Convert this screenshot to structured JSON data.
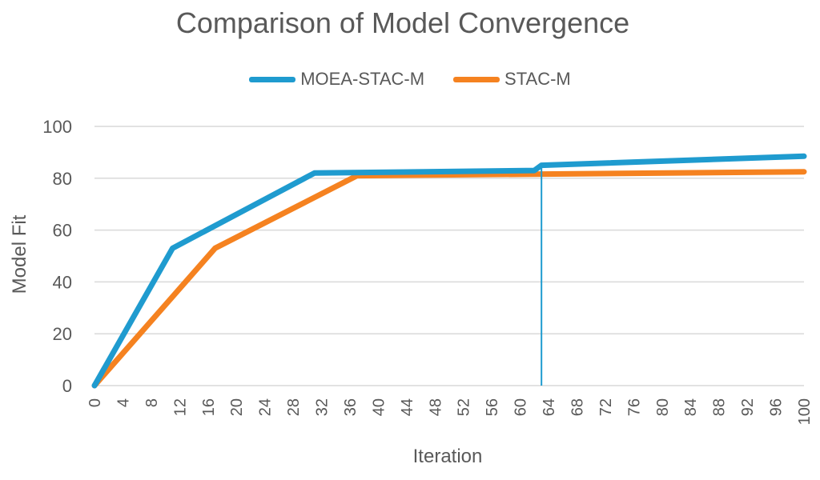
{
  "chart_data": {
    "type": "line",
    "title": "Comparison of Model Convergence",
    "xlabel": "Iteration",
    "ylabel": "Model Fit",
    "xlim": [
      0,
      100
    ],
    "ylim": [
      0,
      100
    ],
    "x_ticks": [
      0,
      4,
      8,
      12,
      16,
      20,
      24,
      28,
      32,
      36,
      40,
      44,
      48,
      52,
      56,
      60,
      64,
      68,
      72,
      76,
      80,
      84,
      88,
      92,
      96,
      100
    ],
    "y_ticks": [
      0,
      20,
      40,
      60,
      80,
      100
    ],
    "grid": "horizontal",
    "legend_position": "top",
    "series": [
      {
        "name": "MOEA-STAC-M",
        "color": "#1f9bcf",
        "points": [
          [
            0,
            0
          ],
          [
            11,
            53
          ],
          [
            31,
            82
          ],
          [
            62,
            83
          ],
          [
            63,
            85
          ],
          [
            100,
            88.5
          ]
        ]
      },
      {
        "name": "STAC-M",
        "color": "#f58220",
        "points": [
          [
            0,
            0
          ],
          [
            17,
            53
          ],
          [
            37,
            81
          ],
          [
            100,
            82.5
          ]
        ]
      }
    ],
    "annotations": [
      {
        "type": "vertical-line",
        "x": 63,
        "y_from": 85,
        "y_to": 0,
        "color": "#1f9bcf"
      }
    ]
  }
}
